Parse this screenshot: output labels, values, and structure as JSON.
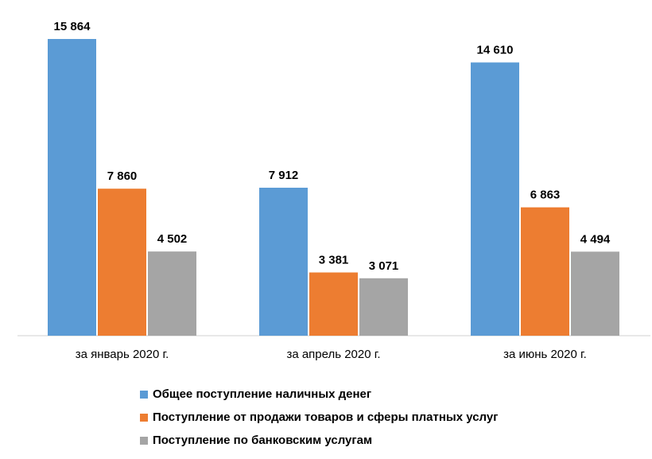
{
  "chart_data": {
    "type": "bar",
    "categories": [
      "за январь 2020 г.",
      "за апрель 2020 г.",
      "за июнь 2020 г."
    ],
    "series": [
      {
        "name": "Общее поступление наличных денег",
        "values": [
          15864,
          7912,
          14610
        ],
        "labels": [
          "15 864",
          "7 912",
          "14 610"
        ],
        "color": "#5B9BD5"
      },
      {
        "name": "Поступление от продажи товаров и сферы платных услуг",
        "values": [
          7860,
          3381,
          6863
        ],
        "labels": [
          "7 860",
          "3 381",
          "6 863"
        ],
        "color": "#ED7D31"
      },
      {
        "name": "Поступление по банковским услугам",
        "values": [
          4502,
          3071,
          4494
        ],
        "labels": [
          "4 502",
          "3 071",
          "4 494"
        ],
        "color": "#A5A5A5"
      }
    ],
    "ylim": [
      0,
      16000
    ],
    "grid": false,
    "legend_position": "bottom",
    "data_labels": true
  }
}
